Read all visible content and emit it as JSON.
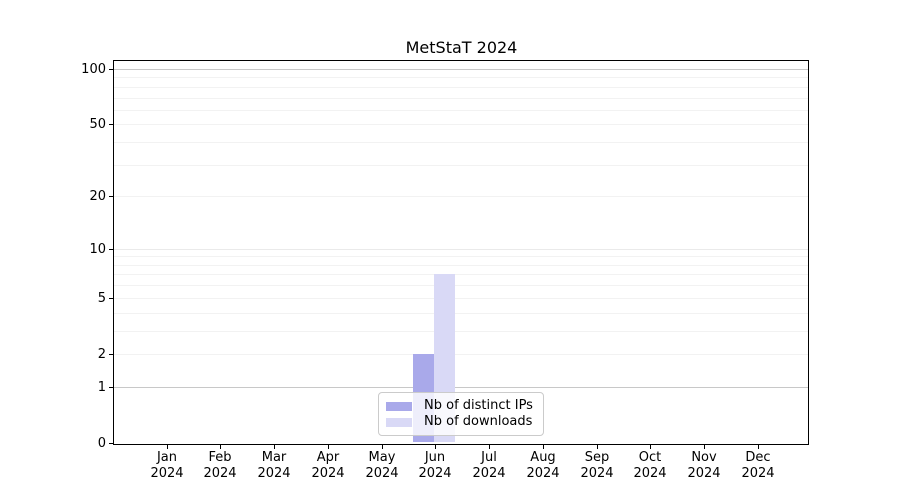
{
  "title": "MetStaT 2024",
  "chart_data": {
    "type": "bar",
    "title": "MetStaT 2024",
    "x_categories": [
      "Jan",
      "Feb",
      "Mar",
      "Apr",
      "May",
      "Jun",
      "Jul",
      "Aug",
      "Sep",
      "Oct",
      "Nov",
      "Dec"
    ],
    "x_year": "2024",
    "series": [
      {
        "name": "Nb of distinct IPs",
        "color": "#a9a9ea",
        "values": [
          0,
          0,
          0,
          0,
          0,
          2,
          0,
          0,
          0,
          0,
          0,
          0
        ]
      },
      {
        "name": "Nb of downloads",
        "color": "#d9d9f6",
        "values": [
          0,
          0,
          0,
          0,
          0,
          7,
          0,
          0,
          0,
          0,
          0,
          0
        ]
      }
    ],
    "y_axis": {
      "scale": "log1p",
      "tick_values": [
        0,
        1,
        2,
        5,
        10,
        20,
        50,
        100
      ],
      "tick_labels": [
        "0",
        "1",
        "2",
        "5",
        "10",
        "20",
        "50",
        "100"
      ],
      "ylim": [
        0,
        112
      ]
    },
    "grid": {
      "horizontal": true,
      "minor_values": [
        1,
        2,
        3,
        4,
        5,
        6,
        7,
        8,
        9,
        10,
        20,
        30,
        40,
        50,
        60,
        70,
        80,
        90,
        100
      ],
      "major_color": "#c8c8c8",
      "mid_color": "#eaeaea",
      "minor_color": "#f2f2f2"
    },
    "legend_position": "lower center",
    "colors": {
      "spine": "#000000",
      "background": "#ffffff"
    }
  }
}
